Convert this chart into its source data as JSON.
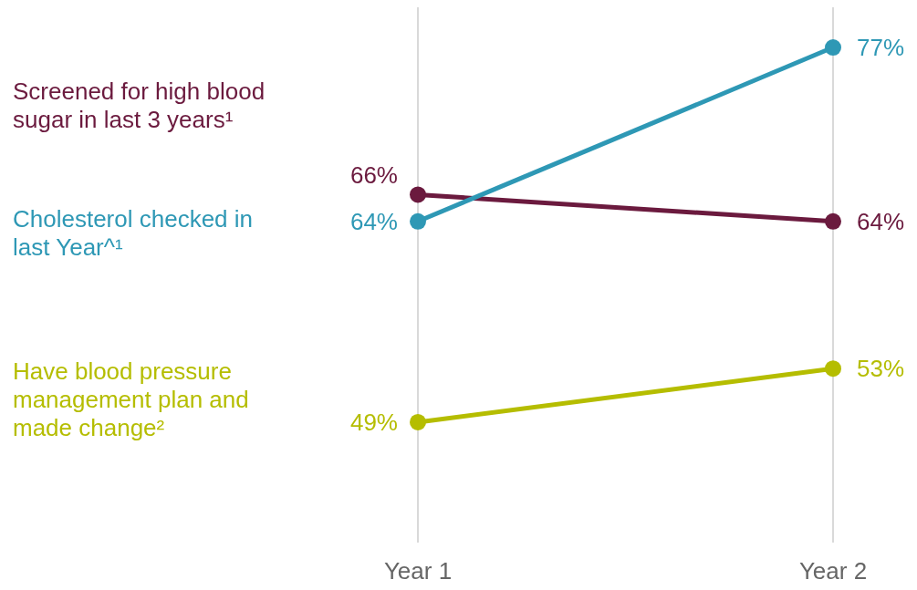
{
  "chart_data": {
    "type": "line",
    "categories": [
      "Year 1",
      "Year 2"
    ],
    "ylim": [
      40,
      80
    ],
    "tick_labels": "x",
    "grid": "x",
    "marker": "circle",
    "series": [
      {
        "name": "Screened for high blood sugar in last 3 years¹",
        "color": "#6b1a3e",
        "values": [
          66,
          64
        ],
        "value_labels": [
          "66%",
          "64%"
        ]
      },
      {
        "name": "Cholesterol checked in last Year^¹",
        "color": "#2e98b5",
        "values": [
          64,
          77
        ],
        "value_labels": [
          "64%",
          "77%"
        ]
      },
      {
        "name": "Have blood pressure management plan and made change²",
        "color": "#b5bd00",
        "values": [
          49,
          53
        ],
        "value_labels": [
          "49%",
          "53%"
        ]
      }
    ]
  }
}
